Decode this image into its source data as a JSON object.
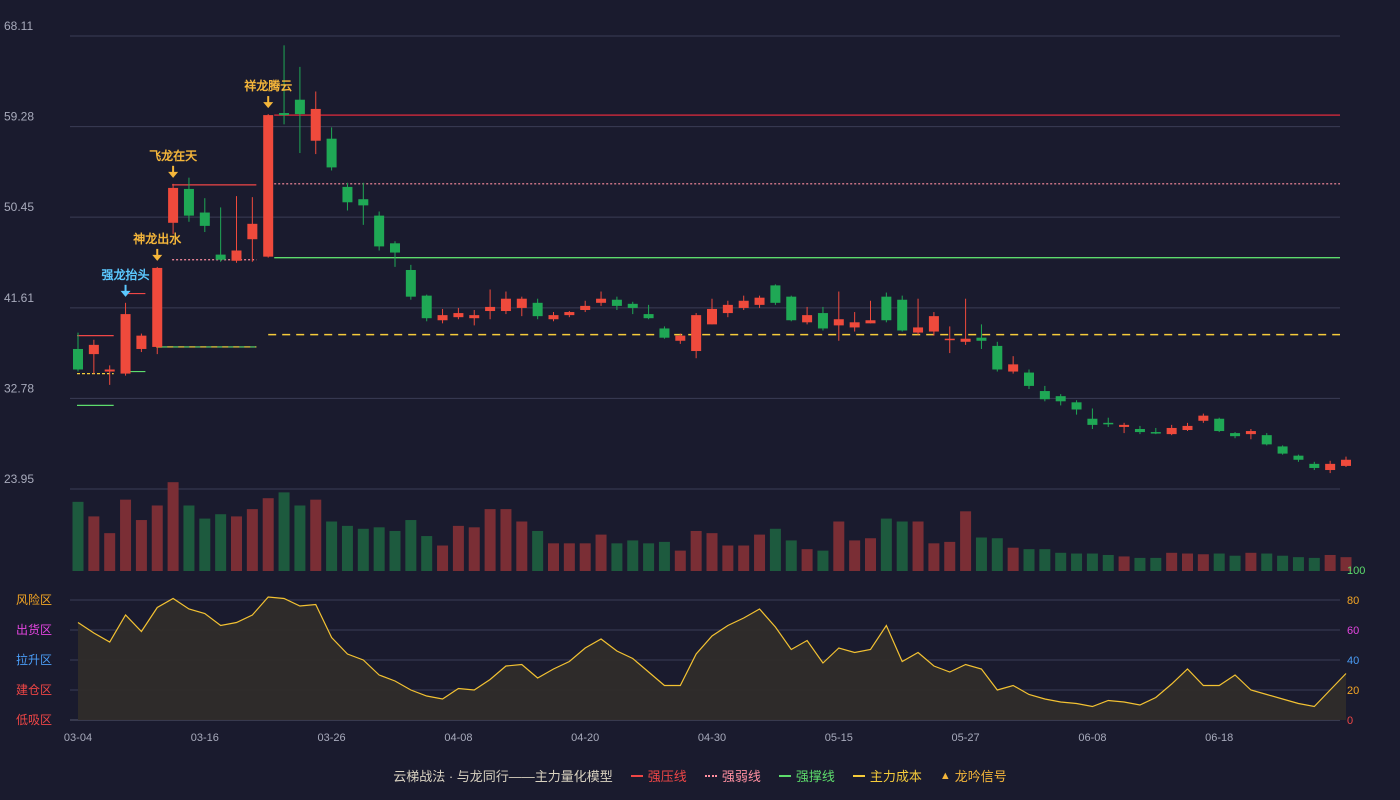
{
  "chart_data": {
    "type": "candlestick",
    "legend_title": "云梯战法 · 与龙同行——主力量化模型",
    "legend": [
      {
        "name": "强压线",
        "color": "#ef4646",
        "style": "solid"
      },
      {
        "name": "强弱线",
        "color": "#ff8fa0",
        "style": "dotted"
      },
      {
        "name": "强撑线",
        "color": "#5ddc6c",
        "style": "solid"
      },
      {
        "name": "主力成本",
        "color": "#f5cb3a",
        "style": "dashed"
      },
      {
        "name": "龙吟信号",
        "color": "#f5b63a",
        "style": "triangle"
      }
    ],
    "price_axis": {
      "ticks": [
        "68.11",
        "59.28",
        "50.45",
        "41.61",
        "32.78",
        "23.95"
      ],
      "min": 23.95,
      "max": 68.11
    },
    "x_labels": [
      {
        "i": 0,
        "label": "03-04"
      },
      {
        "i": 8,
        "label": "03-16"
      },
      {
        "i": 16,
        "label": "03-26"
      },
      {
        "i": 24,
        "label": "04-08"
      },
      {
        "i": 32,
        "label": "04-20"
      },
      {
        "i": 40,
        "label": "04-30"
      },
      {
        "i": 48,
        "label": "05-15"
      },
      {
        "i": 56,
        "label": "05-27"
      },
      {
        "i": 64,
        "label": "06-08"
      },
      {
        "i": 72,
        "label": "06-18"
      }
    ],
    "candles": [
      [
        37.6,
        35.6,
        39.2,
        35.4
      ],
      [
        37.1,
        38.0,
        38.5,
        35.2
      ],
      [
        35.4,
        35.6,
        36.0,
        34.1
      ],
      [
        35.2,
        41.0,
        42.1,
        35.0
      ],
      [
        37.6,
        38.9,
        39.1,
        37.3
      ],
      [
        37.8,
        45.5,
        45.6,
        37.1
      ],
      [
        49.9,
        53.3,
        53.7,
        48.8
      ],
      [
        53.2,
        50.6,
        54.3,
        50.0
      ],
      [
        50.9,
        49.6,
        52.3,
        49.0
      ],
      [
        46.8,
        46.3,
        51.4,
        46.1
      ],
      [
        46.2,
        47.2,
        52.5,
        46.0
      ],
      [
        48.3,
        49.8,
        52.4,
        46.1
      ],
      [
        46.6,
        60.4,
        60.5,
        46.5
      ],
      [
        60.6,
        60.4,
        67.2,
        59.5
      ],
      [
        61.9,
        60.5,
        65.1,
        56.7
      ],
      [
        57.9,
        61.0,
        62.7,
        56.6
      ],
      [
        58.1,
        55.3,
        59.2,
        55.0
      ],
      [
        53.4,
        51.9,
        53.8,
        51.1
      ],
      [
        52.2,
        51.6,
        53.8,
        49.7
      ],
      [
        50.6,
        47.6,
        51.0,
        47.2
      ],
      [
        47.9,
        47.0,
        48.1,
        45.6
      ],
      [
        45.3,
        42.7,
        45.8,
        42.4
      ],
      [
        42.8,
        40.6,
        42.9,
        40.3
      ],
      [
        40.4,
        40.9,
        41.5,
        40.1
      ],
      [
        40.7,
        41.1,
        41.6,
        40.5
      ],
      [
        40.6,
        40.9,
        41.4,
        39.9
      ],
      [
        41.3,
        41.7,
        43.4,
        40.5
      ],
      [
        41.3,
        42.5,
        43.2,
        41.0
      ],
      [
        41.6,
        42.5,
        42.7,
        40.8
      ],
      [
        42.1,
        40.8,
        42.5,
        40.5
      ],
      [
        40.5,
        40.9,
        41.2,
        40.3
      ],
      [
        40.9,
        41.2,
        41.3,
        40.7
      ],
      [
        41.4,
        41.8,
        42.3,
        41.2
      ],
      [
        42.1,
        42.5,
        43.2,
        41.8
      ],
      [
        42.4,
        41.8,
        42.7,
        41.4
      ],
      [
        42.0,
        41.6,
        42.2,
        41.0
      ],
      [
        41.0,
        40.6,
        41.9,
        40.5
      ],
      [
        39.6,
        38.7,
        39.8,
        38.6
      ],
      [
        38.4,
        38.9,
        39.1,
        38.1
      ],
      [
        37.4,
        40.9,
        41.1,
        36.7
      ],
      [
        40.0,
        41.5,
        42.5,
        40.0
      ],
      [
        41.1,
        41.9,
        42.3,
        40.7
      ],
      [
        41.6,
        42.3,
        42.8,
        41.4
      ],
      [
        41.9,
        42.6,
        42.8,
        41.6
      ],
      [
        43.8,
        42.1,
        43.9,
        41.9
      ],
      [
        42.7,
        40.4,
        42.8,
        40.3
      ],
      [
        40.2,
        40.9,
        41.7,
        40.0
      ],
      [
        41.1,
        39.6,
        41.7,
        39.4
      ],
      [
        39.9,
        40.5,
        43.2,
        38.4
      ],
      [
        39.7,
        40.2,
        41.2,
        39.3
      ],
      [
        40.1,
        40.4,
        42.3,
        40.1
      ],
      [
        42.7,
        40.4,
        43.1,
        40.2
      ],
      [
        42.4,
        39.4,
        42.8,
        39.3
      ],
      [
        39.2,
        39.7,
        42.5,
        39.0
      ],
      [
        39.3,
        40.8,
        41.2,
        38.9
      ],
      [
        38.6,
        38.6,
        39.8,
        37.2
      ],
      [
        38.3,
        38.6,
        42.5,
        38.0
      ],
      [
        38.7,
        38.4,
        40.0,
        37.6
      ],
      [
        37.9,
        35.6,
        38.3,
        35.4
      ],
      [
        35.4,
        36.1,
        36.9,
        35.2
      ],
      [
        35.3,
        34.0,
        35.6,
        33.7
      ],
      [
        33.5,
        32.7,
        34.0,
        32.5
      ],
      [
        33.0,
        32.5,
        33.2,
        32.1
      ],
      [
        32.4,
        31.7,
        32.6,
        31.2
      ],
      [
        30.8,
        30.2,
        31.8,
        29.8
      ],
      [
        30.4,
        30.3,
        30.9,
        30.0
      ],
      [
        30.0,
        30.2,
        30.4,
        29.4
      ],
      [
        29.8,
        29.5,
        30.1,
        29.3
      ],
      [
        29.5,
        29.4,
        29.9,
        29.3
      ],
      [
        29.3,
        29.9,
        30.2,
        29.2
      ],
      [
        29.7,
        30.1,
        30.4,
        29.6
      ],
      [
        30.6,
        31.1,
        31.3,
        30.4
      ],
      [
        30.8,
        29.6,
        30.9,
        29.5
      ],
      [
        29.4,
        29.1,
        29.5,
        28.9
      ],
      [
        29.3,
        29.6,
        29.8,
        28.8
      ],
      [
        29.2,
        28.3,
        29.4,
        28.2
      ],
      [
        28.1,
        27.4,
        28.2,
        27.3
      ],
      [
        27.2,
        26.8,
        27.3,
        26.6
      ],
      [
        26.4,
        26.0,
        26.6,
        25.8
      ],
      [
        25.8,
        26.4,
        26.7,
        25.5
      ],
      [
        26.2,
        26.8,
        27.1,
        26.1
      ]
    ],
    "volumes": [
      95,
      75,
      52,
      98,
      70,
      90,
      122,
      90,
      72,
      78,
      75,
      85,
      100,
      108,
      90,
      98,
      68,
      62,
      58,
      60,
      55,
      70,
      48,
      35,
      62,
      60,
      85,
      85,
      68,
      55,
      38,
      38,
      38,
      50,
      38,
      42,
      38,
      40,
      28,
      55,
      52,
      35,
      35,
      50,
      58,
      42,
      30,
      28,
      68,
      42,
      45,
      72,
      68,
      68,
      38,
      40,
      82,
      46,
      45,
      32,
      30,
      30,
      25,
      24,
      24,
      22,
      20,
      18,
      18,
      25,
      24,
      23,
      24,
      21,
      25,
      24,
      21,
      19,
      18,
      22,
      19
    ],
    "oscillator": {
      "ticks": [
        "100",
        "80",
        "60",
        "40",
        "20",
        "0"
      ],
      "zones": [
        "风险区",
        "出货区",
        "拉升区",
        "建仓区",
        "低吸区"
      ],
      "values": [
        65,
        58,
        52,
        70,
        59,
        75,
        81,
        74,
        71,
        63,
        65,
        70,
        82,
        81,
        76,
        77,
        55,
        44,
        40,
        30,
        26,
        20,
        16,
        14,
        21,
        20,
        27,
        36,
        37,
        28,
        34,
        39,
        48,
        54,
        46,
        41,
        32,
        23,
        23,
        44,
        56,
        63,
        68,
        74,
        62,
        47,
        53,
        38,
        48,
        45,
        47,
        63,
        39,
        45,
        36,
        32,
        37,
        34,
        20,
        23,
        17,
        14,
        12,
        11,
        9,
        13,
        12,
        10,
        15,
        24,
        34,
        23,
        23,
        30,
        20,
        17,
        14,
        11,
        9,
        20,
        31
      ]
    },
    "levels": {
      "strong_pressure": 60.4,
      "strong_weak": 53.7,
      "strong_support": 46.5,
      "main_cost": 39.0
    },
    "signals": [
      {
        "i": 3,
        "label": "强龙抬头",
        "color": "#5bc8ff"
      },
      {
        "i": 5,
        "label": "神龙出水",
        "color": "#f5b63a"
      },
      {
        "i": 6,
        "label": "飞龙在天",
        "color": "#f5b63a"
      },
      {
        "i": 12,
        "label": "祥龙腾云",
        "color": "#f5b63a"
      }
    ],
    "colors": {
      "up": "#ef4a3c",
      "down": "#1fa855",
      "vol_up": "#7a2e35",
      "vol_down": "#1d5a3e",
      "osc_line": "#f3c232",
      "osc_zero": "#ef4646",
      "osc_100": "#5ddc6c",
      "grid": "#3b3d55"
    }
  }
}
